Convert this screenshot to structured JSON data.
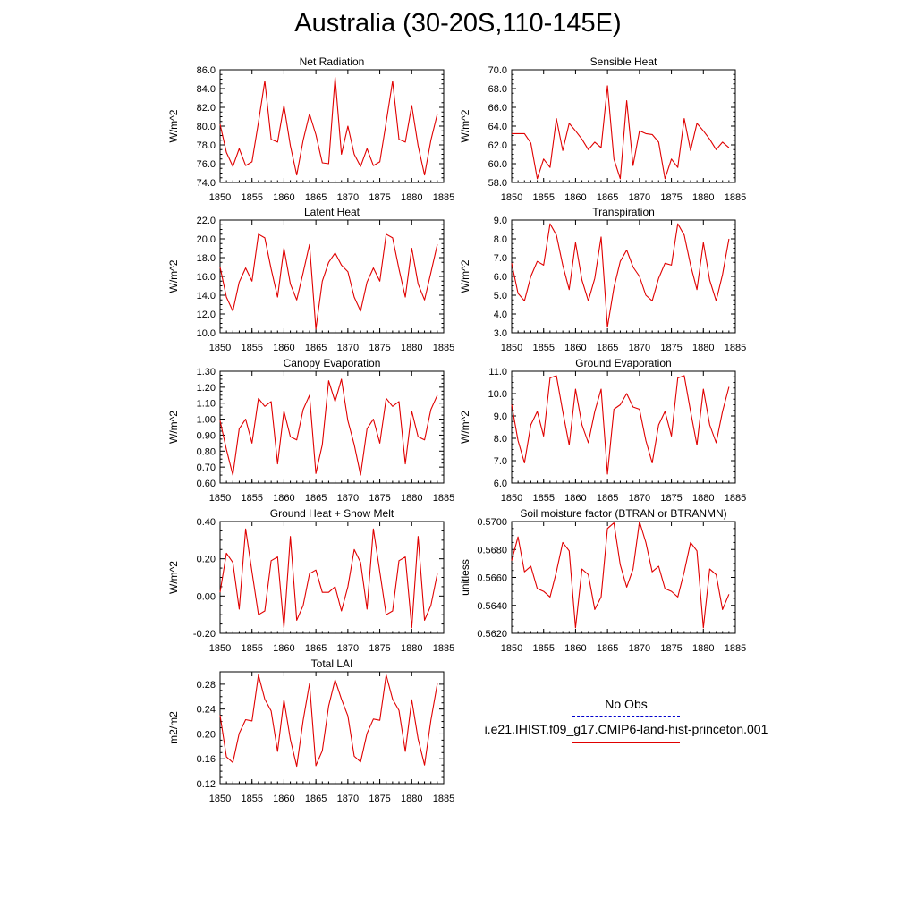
{
  "title": "Australia (30-20S,110-145E)",
  "colors": {
    "series": "#e00000",
    "obs": "#0000cc",
    "axis": "#000000"
  },
  "legend": {
    "obs_label": "No Obs",
    "model_label": "i.e21.IHIST.f09_g17.CMIP6-land-hist-princeton.001"
  },
  "chart_data": [
    {
      "type": "line",
      "title": "Net Radiation",
      "ylabel": "W/m^2",
      "x": [
        1850,
        1851,
        1852,
        1853,
        1854,
        1855,
        1856,
        1857,
        1858,
        1859,
        1860,
        1861,
        1862,
        1863,
        1864,
        1865,
        1866,
        1867,
        1868,
        1869,
        1870,
        1871,
        1872,
        1873,
        1874,
        1875,
        1876,
        1877,
        1878,
        1879,
        1880,
        1881,
        1882,
        1883,
        1884
      ],
      "xlim": [
        1850,
        1885
      ],
      "xticks": [
        "1850",
        "1855",
        "1860",
        "1865",
        "1870",
        "1875",
        "1880",
        "1885"
      ],
      "ylim": [
        74,
        86
      ],
      "yticks": [
        "74.0",
        "76.0",
        "78.0",
        "80.0",
        "82.0",
        "84.0",
        "86.0"
      ],
      "series": [
        {
          "values": [
            80.2,
            77.2,
            75.7,
            77.6,
            75.8,
            76.2,
            80.4,
            84.8,
            78.6,
            78.3,
            82.2,
            77.9,
            74.8,
            78.5,
            81.3,
            79.1,
            76.1,
            76.0,
            85.2,
            77.0,
            80.0,
            77.0,
            75.7,
            77.6,
            75.8,
            76.2,
            80.4,
            84.8,
            78.6,
            78.3,
            82.2,
            77.9,
            74.8,
            78.5,
            81.3
          ]
        }
      ]
    },
    {
      "type": "line",
      "title": "Sensible Heat",
      "ylabel": "W/m^2",
      "x": [
        1850,
        1851,
        1852,
        1853,
        1854,
        1855,
        1856,
        1857,
        1858,
        1859,
        1860,
        1861,
        1862,
        1863,
        1864,
        1865,
        1866,
        1867,
        1868,
        1869,
        1870,
        1871,
        1872,
        1873,
        1874,
        1875,
        1876,
        1877,
        1878,
        1879,
        1880,
        1881,
        1882,
        1883,
        1884
      ],
      "xlim": [
        1850,
        1885
      ],
      "xticks": [
        "1850",
        "1855",
        "1860",
        "1865",
        "1870",
        "1875",
        "1880",
        "1885"
      ],
      "ylim": [
        58,
        70
      ],
      "yticks": [
        "58.0",
        "60.0",
        "62.0",
        "64.0",
        "66.0",
        "68.0",
        "70.0"
      ],
      "series": [
        {
          "values": [
            63.2,
            63.2,
            63.2,
            62.2,
            58.4,
            60.5,
            59.6,
            64.8,
            61.4,
            64.3,
            63.5,
            62.6,
            61.5,
            62.3,
            61.7,
            68.3,
            60.5,
            58.4,
            66.7,
            59.8,
            63.5,
            63.2,
            63.1,
            62.3,
            58.4,
            60.5,
            59.6,
            64.8,
            61.4,
            64.3,
            63.5,
            62.6,
            61.5,
            62.3,
            61.7
          ]
        }
      ]
    },
    {
      "type": "line",
      "title": "Latent Heat",
      "ylabel": "W/m^2",
      "x": [
        1850,
        1851,
        1852,
        1853,
        1854,
        1855,
        1856,
        1857,
        1858,
        1859,
        1860,
        1861,
        1862,
        1863,
        1864,
        1865,
        1866,
        1867,
        1868,
        1869,
        1870,
        1871,
        1872,
        1873,
        1874,
        1875,
        1876,
        1877,
        1878,
        1879,
        1880,
        1881,
        1882,
        1883,
        1884
      ],
      "xlim": [
        1850,
        1885
      ],
      "xticks": [
        "1850",
        "1855",
        "1860",
        "1865",
        "1870",
        "1875",
        "1880",
        "1885"
      ],
      "ylim": [
        10,
        22
      ],
      "yticks": [
        "10.0",
        "12.0",
        "14.0",
        "16.0",
        "18.0",
        "20.0",
        "22.0"
      ],
      "series": [
        {
          "values": [
            17.0,
            13.8,
            12.3,
            15.4,
            16.9,
            15.5,
            20.5,
            20.1,
            16.8,
            13.8,
            19.0,
            15.2,
            13.5,
            16.4,
            19.4,
            10.4,
            15.5,
            17.5,
            18.5,
            17.2,
            16.5,
            13.8,
            12.3,
            15.4,
            16.9,
            15.5,
            20.5,
            20.1,
            16.8,
            13.8,
            19.0,
            15.2,
            13.5,
            16.4,
            19.4
          ]
        }
      ]
    },
    {
      "type": "line",
      "title": "Transpiration",
      "ylabel": "W/m^2",
      "x": [
        1850,
        1851,
        1852,
        1853,
        1854,
        1855,
        1856,
        1857,
        1858,
        1859,
        1860,
        1861,
        1862,
        1863,
        1864,
        1865,
        1866,
        1867,
        1868,
        1869,
        1870,
        1871,
        1872,
        1873,
        1874,
        1875,
        1876,
        1877,
        1878,
        1879,
        1880,
        1881,
        1882,
        1883,
        1884
      ],
      "xlim": [
        1850,
        1885
      ],
      "xticks": [
        "1850",
        "1855",
        "1860",
        "1865",
        "1870",
        "1875",
        "1880",
        "1885"
      ],
      "ylim": [
        3,
        9
      ],
      "yticks": [
        "3.0",
        "4.0",
        "5.0",
        "6.0",
        "7.0",
        "8.0",
        "9.0"
      ],
      "series": [
        {
          "values": [
            6.7,
            5.1,
            4.7,
            6.0,
            6.8,
            6.6,
            8.8,
            8.2,
            6.6,
            5.3,
            7.8,
            5.8,
            4.7,
            5.9,
            8.1,
            3.3,
            5.4,
            6.8,
            7.4,
            6.5,
            6.0,
            5.0,
            4.7,
            5.9,
            6.7,
            6.6,
            8.8,
            8.2,
            6.6,
            5.3,
            7.8,
            5.8,
            4.7,
            6.1,
            8.0
          ]
        }
      ]
    },
    {
      "type": "line",
      "title": "Canopy Evaporation",
      "ylabel": "W/m^2",
      "x": [
        1850,
        1851,
        1852,
        1853,
        1854,
        1855,
        1856,
        1857,
        1858,
        1859,
        1860,
        1861,
        1862,
        1863,
        1864,
        1865,
        1866,
        1867,
        1868,
        1869,
        1870,
        1871,
        1872,
        1873,
        1874,
        1875,
        1876,
        1877,
        1878,
        1879,
        1880,
        1881,
        1882,
        1883,
        1884
      ],
      "xlim": [
        1850,
        1885
      ],
      "xticks": [
        "1850",
        "1855",
        "1860",
        "1865",
        "1870",
        "1875",
        "1880",
        "1885"
      ],
      "ylim": [
        0.6,
        1.3
      ],
      "yticks": [
        "0.60",
        "0.70",
        "0.80",
        "0.90",
        "1.00",
        "1.10",
        "1.20",
        "1.30"
      ],
      "series": [
        {
          "values": [
            0.99,
            0.81,
            0.65,
            0.94,
            1.0,
            0.85,
            1.13,
            1.08,
            1.11,
            0.72,
            1.05,
            0.89,
            0.87,
            1.06,
            1.15,
            0.66,
            0.84,
            1.24,
            1.11,
            1.25,
            0.99,
            0.84,
            0.65,
            0.94,
            1.0,
            0.85,
            1.13,
            1.08,
            1.11,
            0.72,
            1.05,
            0.89,
            0.87,
            1.06,
            1.15
          ]
        }
      ]
    },
    {
      "type": "line",
      "title": "Ground Evaporation",
      "ylabel": "W/m^2",
      "x": [
        1850,
        1851,
        1852,
        1853,
        1854,
        1855,
        1856,
        1857,
        1858,
        1859,
        1860,
        1861,
        1862,
        1863,
        1864,
        1865,
        1866,
        1867,
        1868,
        1869,
        1870,
        1871,
        1872,
        1873,
        1874,
        1875,
        1876,
        1877,
        1878,
        1879,
        1880,
        1881,
        1882,
        1883,
        1884
      ],
      "xlim": [
        1850,
        1885
      ],
      "xticks": [
        "1850",
        "1855",
        "1860",
        "1865",
        "1870",
        "1875",
        "1880",
        "1885"
      ],
      "ylim": [
        6,
        11
      ],
      "yticks": [
        "6.0",
        "7.0",
        "8.0",
        "9.0",
        "10.0",
        "11.0"
      ],
      "series": [
        {
          "values": [
            9.5,
            7.9,
            6.9,
            8.6,
            9.2,
            8.1,
            10.7,
            10.8,
            9.2,
            7.7,
            10.2,
            8.6,
            7.8,
            9.2,
            10.2,
            6.4,
            9.3,
            9.5,
            10.0,
            9.4,
            9.3,
            7.9,
            6.9,
            8.6,
            9.2,
            8.1,
            10.7,
            10.8,
            9.2,
            7.7,
            10.2,
            8.6,
            7.8,
            9.2,
            10.3
          ]
        }
      ]
    },
    {
      "type": "line",
      "title": "Ground Heat + Snow Melt",
      "ylabel": "W/m^2",
      "x": [
        1850,
        1851,
        1852,
        1853,
        1854,
        1855,
        1856,
        1857,
        1858,
        1859,
        1860,
        1861,
        1862,
        1863,
        1864,
        1865,
        1866,
        1867,
        1868,
        1869,
        1870,
        1871,
        1872,
        1873,
        1874,
        1875,
        1876,
        1877,
        1878,
        1879,
        1880,
        1881,
        1882,
        1883,
        1884
      ],
      "xlim": [
        1850,
        1885
      ],
      "xticks": [
        "1850",
        "1855",
        "1860",
        "1865",
        "1870",
        "1875",
        "1880",
        "1885"
      ],
      "ylim": [
        -0.2,
        0.4
      ],
      "yticks": [
        "-0.20",
        "0.00",
        "0.20",
        "0.40"
      ],
      "series": [
        {
          "values": [
            0.02,
            0.23,
            0.18,
            -0.07,
            0.36,
            0.13,
            -0.1,
            -0.08,
            0.19,
            0.21,
            -0.17,
            0.32,
            -0.13,
            -0.05,
            0.12,
            0.14,
            0.02,
            0.02,
            0.05,
            -0.08,
            0.05,
            0.25,
            0.18,
            -0.07,
            0.36,
            0.13,
            -0.1,
            -0.08,
            0.19,
            0.21,
            -0.17,
            0.32,
            -0.13,
            -0.05,
            0.12
          ]
        }
      ]
    },
    {
      "type": "line",
      "title": "Soil moisture factor (BTRAN or BTRANMN)",
      "ylabel": "unitless",
      "x": [
        1850,
        1851,
        1852,
        1853,
        1854,
        1855,
        1856,
        1857,
        1858,
        1859,
        1860,
        1861,
        1862,
        1863,
        1864,
        1865,
        1866,
        1867,
        1868,
        1869,
        1870,
        1871,
        1872,
        1873,
        1874,
        1875,
        1876,
        1877,
        1878,
        1879,
        1880,
        1881,
        1882,
        1883,
        1884
      ],
      "xlim": [
        1850,
        1885
      ],
      "xticks": [
        "1850",
        "1855",
        "1860",
        "1865",
        "1870",
        "1875",
        "1880",
        "1885"
      ],
      "ylim": [
        0.562,
        0.57
      ],
      "yticks": [
        "0.5620",
        "0.5640",
        "0.5660",
        "0.5680",
        "0.5700"
      ],
      "series": [
        {
          "values": [
            0.5672,
            0.5689,
            0.5664,
            0.5668,
            0.5652,
            0.565,
            0.5646,
            0.5664,
            0.5685,
            0.5679,
            0.5624,
            0.5666,
            0.5662,
            0.5637,
            0.5646,
            0.5695,
            0.5699,
            0.5669,
            0.5653,
            0.5666,
            0.57,
            0.5685,
            0.5664,
            0.5668,
            0.5652,
            0.565,
            0.5646,
            0.5664,
            0.5685,
            0.5679,
            0.5624,
            0.5666,
            0.5662,
            0.5637,
            0.5648
          ]
        }
      ]
    },
    {
      "type": "line",
      "title": "Total LAI",
      "ylabel": "m2/m2",
      "x": [
        1850,
        1851,
        1852,
        1853,
        1854,
        1855,
        1856,
        1857,
        1858,
        1859,
        1860,
        1861,
        1862,
        1863,
        1864,
        1865,
        1866,
        1867,
        1868,
        1869,
        1870,
        1871,
        1872,
        1873,
        1874,
        1875,
        1876,
        1877,
        1878,
        1879,
        1880,
        1881,
        1882,
        1883,
        1884
      ],
      "xlim": [
        1850,
        1885
      ],
      "xticks": [
        "1850",
        "1855",
        "1860",
        "1865",
        "1870",
        "1875",
        "1880",
        "1885"
      ],
      "ylim": [
        0.12,
        0.3
      ],
      "yticks": [
        "0.12",
        "0.16",
        "0.20",
        "0.24",
        "0.28"
      ],
      "series": [
        {
          "values": [
            0.23,
            0.163,
            0.154,
            0.201,
            0.223,
            0.221,
            0.295,
            0.256,
            0.237,
            0.172,
            0.255,
            0.191,
            0.148,
            0.222,
            0.281,
            0.149,
            0.173,
            0.245,
            0.287,
            0.256,
            0.229,
            0.164,
            0.155,
            0.201,
            0.224,
            0.222,
            0.295,
            0.256,
            0.238,
            0.172,
            0.255,
            0.192,
            0.15,
            0.222,
            0.281
          ]
        }
      ]
    }
  ]
}
